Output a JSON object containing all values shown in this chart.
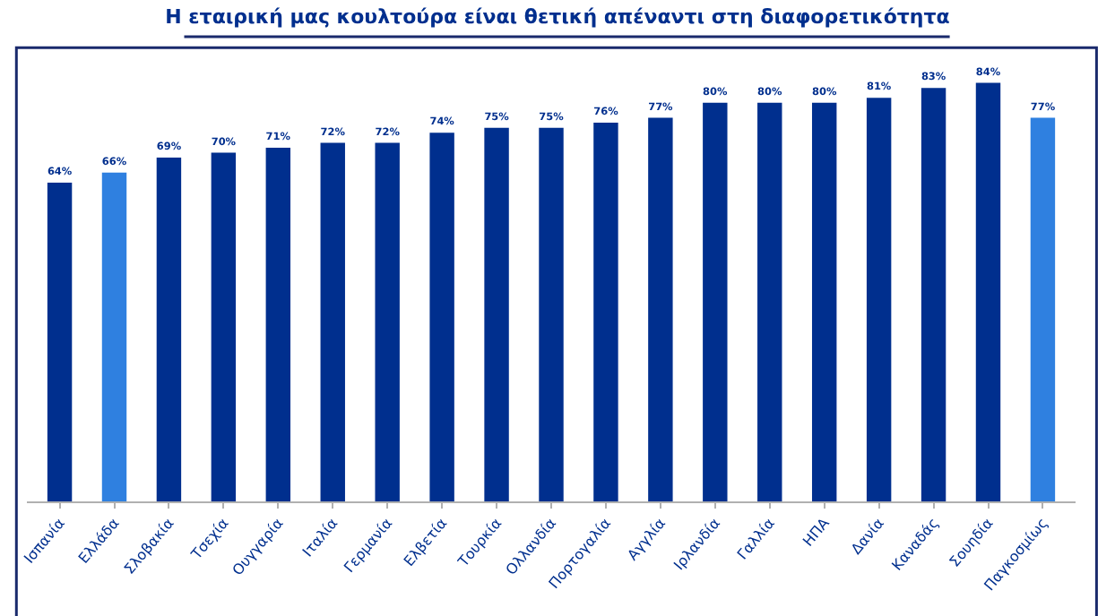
{
  "chart_data": {
    "type": "bar",
    "title": "Η εταιρική μας κουλτούρα είναι θετική απέναντι στη διαφορετικότητα",
    "categories": [
      "Ισπανία",
      "Ελλάδα",
      "Σλοβακία",
      "Τσεχία",
      "Ουγγαρία",
      "Ιταλία",
      "Γερμανία",
      "Ελβετία",
      "Τουρκία",
      "Ολλανδία",
      "Πορτογαλία",
      "Αγγλία",
      "Ιρλανδία",
      "Γαλλία",
      "ΗΠΑ",
      "Δανία",
      "Καναδάς",
      "Σουηδία",
      "Παγκοσμίως"
    ],
    "values": [
      64,
      66,
      69,
      70,
      71,
      72,
      72,
      74,
      75,
      75,
      76,
      77,
      80,
      80,
      80,
      81,
      83,
      84,
      77
    ],
    "value_labels": [
      "64%",
      "66%",
      "69%",
      "70%",
      "71%",
      "72%",
      "72%",
      "74%",
      "75%",
      "75%",
      "76%",
      "77%",
      "80%",
      "80%",
      "80%",
      "81%",
      "83%",
      "84%",
      "77%"
    ],
    "colors": [
      "#002f8e",
      "#2f80e0",
      "#002f8e",
      "#002f8e",
      "#002f8e",
      "#002f8e",
      "#002f8e",
      "#002f8e",
      "#002f8e",
      "#002f8e",
      "#002f8e",
      "#002f8e",
      "#002f8e",
      "#002f8e",
      "#002f8e",
      "#002f8e",
      "#002f8e",
      "#002f8e",
      "#2f80e0"
    ],
    "tick_labels": "x"
  }
}
